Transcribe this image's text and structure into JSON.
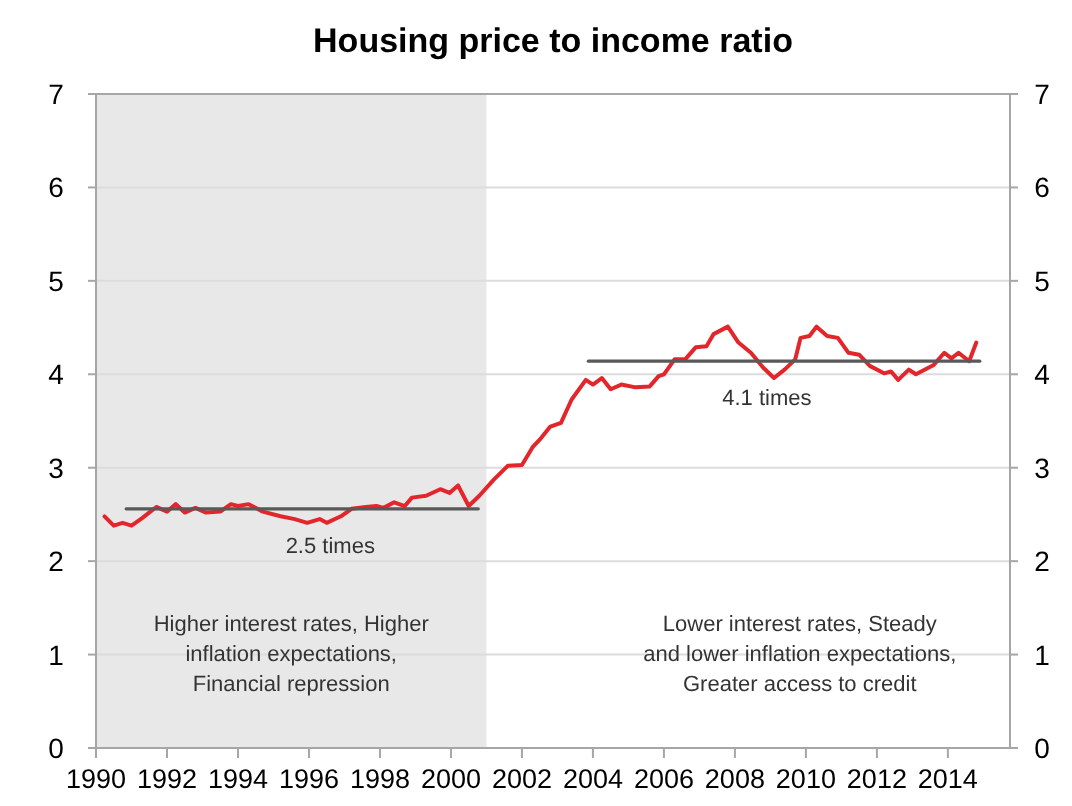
{
  "chart_data": {
    "type": "line",
    "title": "Housing price to income ratio",
    "x": [
      1990.24,
      1990.5,
      1990.75,
      1991.0,
      1991.3,
      1991.7,
      1992.0,
      1992.25,
      1992.5,
      1992.8,
      1993.1,
      1993.5,
      1993.8,
      1994.0,
      1994.3,
      1994.7,
      1995.2,
      1995.6,
      1995.95,
      1996.3,
      1996.5,
      1996.9,
      1997.2,
      1997.6,
      1997.9,
      1998.1,
      1998.4,
      1998.7,
      1998.9,
      1999.3,
      1999.7,
      1999.96,
      2000.2,
      2000.5,
      2000.8,
      2001.2,
      2001.6,
      2002.0,
      2002.3,
      2002.5,
      2002.8,
      2003.1,
      2003.4,
      2003.8,
      2004.0,
      2004.25,
      2004.5,
      2004.8,
      2005.2,
      2005.6,
      2005.85,
      2006.0,
      2006.3,
      2006.6,
      2006.9,
      2007.2,
      2007.4,
      2007.8,
      2008.1,
      2008.45,
      2008.8,
      2009.1,
      2009.4,
      2009.7,
      2009.85,
      2010.1,
      2010.3,
      2010.6,
      2010.9,
      2011.2,
      2011.5,
      2011.8,
      2012.2,
      2012.4,
      2012.6,
      2012.9,
      2013.1,
      2013.6,
      2013.9,
      2014.1,
      2014.3,
      2014.6,
      2014.8
    ],
    "series": [
      {
        "color": "#e3262b",
        "values": [
          2.48,
          2.38,
          2.41,
          2.38,
          2.46,
          2.58,
          2.53,
          2.61,
          2.52,
          2.57,
          2.52,
          2.53,
          2.61,
          2.59,
          2.61,
          2.53,
          2.48,
          2.45,
          2.41,
          2.45,
          2.41,
          2.48,
          2.56,
          2.58,
          2.59,
          2.57,
          2.63,
          2.59,
          2.68,
          2.7,
          2.77,
          2.73,
          2.81,
          2.59,
          2.7,
          2.87,
          3.02,
          3.03,
          3.22,
          3.3,
          3.44,
          3.48,
          3.73,
          3.94,
          3.89,
          3.96,
          3.84,
          3.89,
          3.86,
          3.87,
          3.98,
          4.0,
          4.16,
          4.16,
          4.29,
          4.3,
          4.43,
          4.51,
          4.34,
          4.23,
          4.07,
          3.96,
          4.05,
          4.16,
          4.39,
          4.41,
          4.51,
          4.41,
          4.39,
          4.23,
          4.21,
          4.09,
          4.01,
          4.03,
          3.94,
          4.05,
          4.0,
          4.1,
          4.23,
          4.17,
          4.23,
          4.14,
          4.34
        ]
      },
      {
        "color": "#595959",
        "x": [
          1990.85,
          2000.77
        ],
        "values": [
          2.56,
          2.56
        ]
      },
      {
        "color": "#595959",
        "x": [
          2003.87,
          2014.9
        ],
        "values": [
          4.14,
          4.14
        ]
      }
    ],
    "xlim": [
      1990,
      2015.75
    ],
    "xticks": [
      1990,
      1992,
      1994,
      1996,
      1998,
      2000,
      2002,
      2004,
      2006,
      2008,
      2010,
      2012,
      2014
    ],
    "ylim": [
      0,
      7
    ],
    "yticks": [
      0,
      1,
      2,
      3,
      4,
      5,
      6,
      7
    ],
    "y2lim": [
      0,
      7
    ],
    "y2ticks": [
      0,
      1,
      2,
      3,
      4,
      5,
      6,
      7
    ],
    "grid": "y",
    "marker": "none",
    "line_style": "solid",
    "bands": [
      {
        "axis": "x",
        "from": 1990,
        "to": 2001,
        "color": "#e8e8e8",
        "label": "Higher interest rates, Higher\ninflation expectations,\nFinancial repression"
      }
    ],
    "annotations": [
      {
        "text": "2.5 times",
        "x": 1996.6,
        "y": 2.56
      },
      {
        "text": "4.1 times",
        "x": 2008.9,
        "y": 4.14
      },
      "Lower interest rates, Steady\nand lower inflation expectations,\nGreater access to credit"
    ]
  }
}
